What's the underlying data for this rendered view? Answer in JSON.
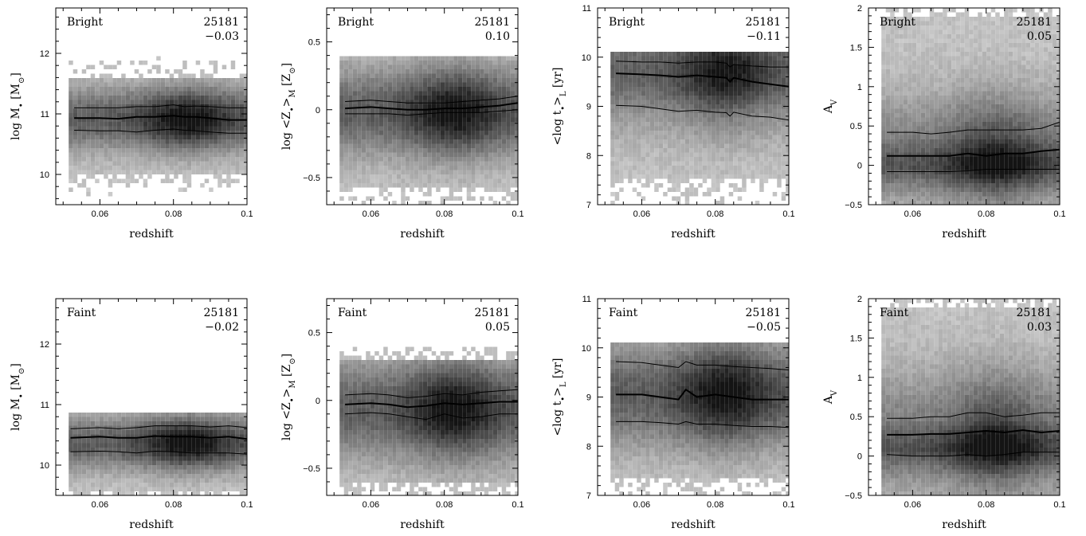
{
  "chart_data": [
    {
      "type": "heatmap",
      "row": "Bright",
      "label": "Bright",
      "count": "25181",
      "corr": "−0.03",
      "xlabel": "redshift",
      "ylabel_parts": [
        "log M",
        "•",
        " [M",
        "⊙",
        "]"
      ],
      "xlim": [
        0.048,
        0.1
      ],
      "ylim": [
        9.5,
        12.75
      ],
      "xticks": [
        {
          "v": 0.06,
          "t": "0.06"
        },
        {
          "v": 0.08,
          "t": "0.08"
        },
        {
          "v": 0.1,
          "t": "0.1"
        }
      ],
      "yticks": [
        {
          "v": 10,
          "t": "10"
        },
        {
          "v": 11,
          "t": "11"
        },
        {
          "v": 12,
          "t": "12"
        }
      ],
      "cloud": {
        "center": 10.95,
        "halfwidth": 0.65,
        "sparse_low": 10.05,
        "sparse_high": 11.6,
        "peak_x": 0.083
      },
      "curves": {
        "x": [
          0.053,
          0.06,
          0.065,
          0.07,
          0.075,
          0.08,
          0.083,
          0.086,
          0.09,
          0.095,
          0.1
        ],
        "high": [
          11.1,
          11.1,
          11.1,
          11.12,
          11.12,
          11.15,
          11.12,
          11.13,
          11.12,
          11.1,
          11.1
        ],
        "mid": [
          10.93,
          10.93,
          10.92,
          10.95,
          10.95,
          10.97,
          10.95,
          10.95,
          10.93,
          10.9,
          10.9
        ],
        "low": [
          10.73,
          10.72,
          10.72,
          10.7,
          10.73,
          10.75,
          10.73,
          10.72,
          10.7,
          10.68,
          10.68
        ]
      }
    },
    {
      "type": "heatmap",
      "row": "Bright",
      "label": "Bright",
      "count": "25181",
      "corr": "0.10",
      "xlabel": "redshift",
      "ylabel_parts": [
        "log <Z",
        "•",
        ">",
        "M",
        " [Z",
        "⊙",
        "]"
      ],
      "xlim": [
        0.048,
        0.1
      ],
      "ylim": [
        -0.7,
        0.75
      ],
      "xticks": [
        {
          "v": 0.06,
          "t": "0.06"
        },
        {
          "v": 0.08,
          "t": "0.08"
        },
        {
          "v": 0.1,
          "t": "0.1"
        }
      ],
      "yticks": [
        {
          "v": -0.5,
          "t": "−0.5"
        },
        {
          "v": 0,
          "t": "0"
        },
        {
          "v": 0.5,
          "t": "0.5"
        }
      ],
      "cloud": {
        "center": 0.0,
        "halfwidth": 0.4,
        "sparse_low": -0.55,
        "sparse_high": 0.4,
        "peak_x": 0.082,
        "cap": 0.4
      },
      "curves": {
        "x": [
          0.053,
          0.06,
          0.065,
          0.07,
          0.075,
          0.08,
          0.085,
          0.09,
          0.095,
          0.1
        ],
        "high": [
          0.06,
          0.07,
          0.06,
          0.05,
          0.05,
          0.05,
          0.06,
          0.07,
          0.08,
          0.1
        ],
        "mid": [
          0.01,
          0.02,
          0.01,
          0.0,
          0.0,
          0.01,
          0.01,
          0.02,
          0.03,
          0.05
        ],
        "low": [
          -0.03,
          -0.03,
          -0.03,
          -0.04,
          -0.03,
          -0.02,
          -0.02,
          -0.02,
          -0.01,
          0.0
        ]
      }
    },
    {
      "type": "heatmap",
      "row": "Bright",
      "label": "Bright",
      "count": "25181",
      "corr": "−0.11",
      "xlabel": "redshift",
      "ylabel_parts": [
        "<log t",
        "•",
        ">",
        "L",
        " [yr]"
      ],
      "xlim": [
        0.048,
        0.1
      ],
      "ylim": [
        7,
        11
      ],
      "xticks": [
        {
          "v": 0.06,
          "t": "0.06"
        },
        {
          "v": 0.08,
          "t": "0.08"
        },
        {
          "v": 0.1,
          "t": "0.1"
        }
      ],
      "yticks": [
        {
          "v": 7,
          "t": "7"
        },
        {
          "v": 8,
          "t": "8"
        },
        {
          "v": 9,
          "t": "9"
        },
        {
          "v": 10,
          "t": "10"
        },
        {
          "v": 11,
          "t": "11"
        }
      ],
      "cloud": {
        "center": 9.5,
        "halfwidth": 1.3,
        "sparse_low": 7.6,
        "sparse_high": 10.15,
        "peak_x": 0.082,
        "cap": 10.15,
        "dense_top": true
      },
      "curves": {
        "x": [
          0.053,
          0.06,
          0.065,
          0.07,
          0.075,
          0.08,
          0.083,
          0.084,
          0.085,
          0.09,
          0.095,
          0.1
        ],
        "high": [
          9.92,
          9.9,
          9.9,
          9.88,
          9.9,
          9.9,
          9.88,
          9.8,
          9.85,
          9.82,
          9.8,
          9.8
        ],
        "mid": [
          9.67,
          9.65,
          9.63,
          9.6,
          9.63,
          9.6,
          9.58,
          9.5,
          9.58,
          9.5,
          9.45,
          9.4
        ],
        "low": [
          9.02,
          9.0,
          8.95,
          8.9,
          8.92,
          8.88,
          8.87,
          8.8,
          8.88,
          8.8,
          8.78,
          8.72
        ]
      }
    },
    {
      "type": "heatmap",
      "row": "Bright",
      "label": "Bright",
      "count": "25181",
      "corr": "0.05",
      "xlabel": "redshift",
      "ylabel_parts": [
        "A",
        "V"
      ],
      "xlim": [
        0.048,
        0.1
      ],
      "ylim": [
        -0.5,
        2
      ],
      "xticks": [
        {
          "v": 0.06,
          "t": "0.06"
        },
        {
          "v": 0.08,
          "t": "0.08"
        },
        {
          "v": 0.1,
          "t": "0.1"
        }
      ],
      "yticks": [
        {
          "v": -0.5,
          "t": "−0.5"
        },
        {
          "v": 0,
          "t": "0"
        },
        {
          "v": 0.5,
          "t": "0.5"
        },
        {
          "v": 1,
          "t": "1"
        },
        {
          "v": 1.5,
          "t": "1.5"
        },
        {
          "v": 2,
          "t": "2"
        }
      ],
      "cloud": {
        "center": 0.2,
        "halfwidth": 0.9,
        "sparse_low": -0.45,
        "sparse_high": 1.9,
        "peak_x": 0.082,
        "dense_bottom": true
      },
      "curves": {
        "x": [
          0.053,
          0.06,
          0.065,
          0.07,
          0.075,
          0.08,
          0.085,
          0.09,
          0.095,
          0.1
        ],
        "high": [
          0.42,
          0.42,
          0.4,
          0.42,
          0.45,
          0.45,
          0.45,
          0.45,
          0.47,
          0.55
        ],
        "mid": [
          0.12,
          0.12,
          0.12,
          0.12,
          0.15,
          0.12,
          0.15,
          0.15,
          0.18,
          0.2
        ],
        "low": [
          -0.08,
          -0.08,
          -0.08,
          -0.08,
          -0.07,
          -0.05,
          -0.05,
          -0.05,
          -0.05,
          -0.05
        ]
      }
    },
    {
      "type": "heatmap",
      "row": "Faint",
      "label": "Faint",
      "count": "25181",
      "corr": "−0.02",
      "xlabel": "redshift",
      "ylabel_parts": [
        "log M",
        "•",
        " [M",
        "⊙",
        "]"
      ],
      "xlim": [
        0.048,
        0.1
      ],
      "ylim": [
        9.5,
        12.75
      ],
      "xticks": [
        {
          "v": 0.06,
          "t": "0.06"
        },
        {
          "v": 0.08,
          "t": "0.08"
        },
        {
          "v": 0.1,
          "t": "0.1"
        }
      ],
      "yticks": [
        {
          "v": 10,
          "t": "10"
        },
        {
          "v": 11,
          "t": "11"
        },
        {
          "v": 12,
          "t": "12"
        }
      ],
      "cloud": {
        "center": 10.4,
        "halfwidth": 0.55,
        "sparse_low": 9.6,
        "sparse_high": 10.9,
        "peak_x": 0.083,
        "cap": 10.9
      },
      "curves": {
        "x": [
          0.052,
          0.06,
          0.065,
          0.07,
          0.075,
          0.08,
          0.085,
          0.09,
          0.095,
          0.1
        ],
        "high": [
          10.6,
          10.62,
          10.6,
          10.62,
          10.65,
          10.65,
          10.65,
          10.63,
          10.65,
          10.62
        ],
        "mid": [
          10.45,
          10.47,
          10.45,
          10.45,
          10.48,
          10.47,
          10.47,
          10.45,
          10.47,
          10.43
        ],
        "low": [
          10.22,
          10.23,
          10.22,
          10.2,
          10.23,
          10.22,
          10.2,
          10.2,
          10.2,
          10.18
        ]
      }
    },
    {
      "type": "heatmap",
      "row": "Faint",
      "label": "Faint",
      "count": "25181",
      "corr": "0.05",
      "xlabel": "redshift",
      "ylabel_parts": [
        "log <Z",
        "•",
        ">",
        "M",
        " [Z",
        "⊙",
        "]"
      ],
      "xlim": [
        0.048,
        0.1
      ],
      "ylim": [
        -0.7,
        0.75
      ],
      "xticks": [
        {
          "v": 0.06,
          "t": "0.06"
        },
        {
          "v": 0.08,
          "t": "0.08"
        },
        {
          "v": 0.1,
          "t": "0.1"
        }
      ],
      "yticks": [
        {
          "v": -0.5,
          "t": "−0.5"
        },
        {
          "v": 0,
          "t": "0"
        },
        {
          "v": 0.5,
          "t": "0.5"
        }
      ],
      "cloud": {
        "center": -0.05,
        "halfwidth": 0.45,
        "sparse_low": -0.6,
        "sparse_high": 0.3,
        "peak_x": 0.082,
        "cap": 0.42
      },
      "curves": {
        "x": [
          0.053,
          0.06,
          0.065,
          0.07,
          0.075,
          0.08,
          0.085,
          0.09,
          0.095,
          0.1
        ],
        "high": [
          0.04,
          0.05,
          0.04,
          0.02,
          0.03,
          0.05,
          0.04,
          0.06,
          0.07,
          0.08
        ],
        "mid": [
          -0.03,
          -0.02,
          -0.03,
          -0.05,
          -0.04,
          -0.02,
          -0.03,
          -0.02,
          -0.01,
          -0.01
        ],
        "low": [
          -0.1,
          -0.09,
          -0.1,
          -0.12,
          -0.14,
          -0.1,
          -0.13,
          -0.12,
          -0.1,
          -0.1
        ]
      }
    },
    {
      "type": "heatmap",
      "row": "Faint",
      "label": "Faint",
      "count": "25181",
      "corr": "−0.05",
      "xlabel": "redshift",
      "ylabel_parts": [
        "<log t",
        "•",
        ">",
        "L",
        " [yr]"
      ],
      "xlim": [
        0.048,
        0.1
      ],
      "ylim": [
        7,
        11
      ],
      "xticks": [
        {
          "v": 0.06,
          "t": "0.06"
        },
        {
          "v": 0.08,
          "t": "0.08"
        },
        {
          "v": 0.1,
          "t": "0.1"
        }
      ],
      "yticks": [
        {
          "v": 7,
          "t": "7"
        },
        {
          "v": 8,
          "t": "8"
        },
        {
          "v": 9,
          "t": "9"
        },
        {
          "v": 10,
          "t": "10"
        },
        {
          "v": 11,
          "t": "11"
        }
      ],
      "cloud": {
        "center": 9.1,
        "halfwidth": 1.3,
        "sparse_low": 7.4,
        "sparse_high": 10.15,
        "peak_x": 0.082,
        "cap": 10.15
      },
      "curves": {
        "x": [
          0.053,
          0.06,
          0.065,
          0.07,
          0.072,
          0.075,
          0.08,
          0.085,
          0.09,
          0.095,
          0.1
        ],
        "high": [
          9.72,
          9.7,
          9.65,
          9.6,
          9.72,
          9.65,
          9.65,
          9.62,
          9.6,
          9.58,
          9.55
        ],
        "mid": [
          9.05,
          9.05,
          9.0,
          8.95,
          9.15,
          9.0,
          9.05,
          9.0,
          8.95,
          8.95,
          8.95
        ],
        "low": [
          8.5,
          8.5,
          8.48,
          8.45,
          8.5,
          8.45,
          8.45,
          8.42,
          8.4,
          8.4,
          8.38
        ]
      }
    },
    {
      "type": "heatmap",
      "row": "Faint",
      "label": "Faint",
      "count": "25181",
      "corr": "0.03",
      "xlabel": "redshift",
      "ylabel_parts": [
        "A",
        "V"
      ],
      "xlim": [
        0.048,
        0.1
      ],
      "ylim": [
        -0.5,
        2
      ],
      "xticks": [
        {
          "v": 0.06,
          "t": "0.06"
        },
        {
          "v": 0.08,
          "t": "0.08"
        },
        {
          "v": 0.1,
          "t": "0.1"
        }
      ],
      "yticks": [
        {
          "v": -0.5,
          "t": "−0.5"
        },
        {
          "v": 0,
          "t": "0"
        },
        {
          "v": 0.5,
          "t": "0.5"
        },
        {
          "v": 1,
          "t": "1"
        },
        {
          "v": 1.5,
          "t": "1.5"
        },
        {
          "v": 2,
          "t": "2"
        }
      ],
      "cloud": {
        "center": 0.3,
        "halfwidth": 1.0,
        "sparse_low": -0.45,
        "sparse_high": 1.9,
        "peak_x": 0.082,
        "dense_bottom": true
      },
      "curves": {
        "x": [
          0.053,
          0.06,
          0.065,
          0.07,
          0.075,
          0.08,
          0.085,
          0.09,
          0.095,
          0.1
        ],
        "high": [
          0.48,
          0.48,
          0.5,
          0.5,
          0.55,
          0.55,
          0.5,
          0.52,
          0.55,
          0.55
        ],
        "mid": [
          0.27,
          0.27,
          0.28,
          0.28,
          0.3,
          0.32,
          0.3,
          0.33,
          0.3,
          0.32
        ],
        "low": [
          0.02,
          0.0,
          0.0,
          0.0,
          0.02,
          0.0,
          0.02,
          0.05,
          0.05,
          0.05
        ]
      }
    }
  ]
}
